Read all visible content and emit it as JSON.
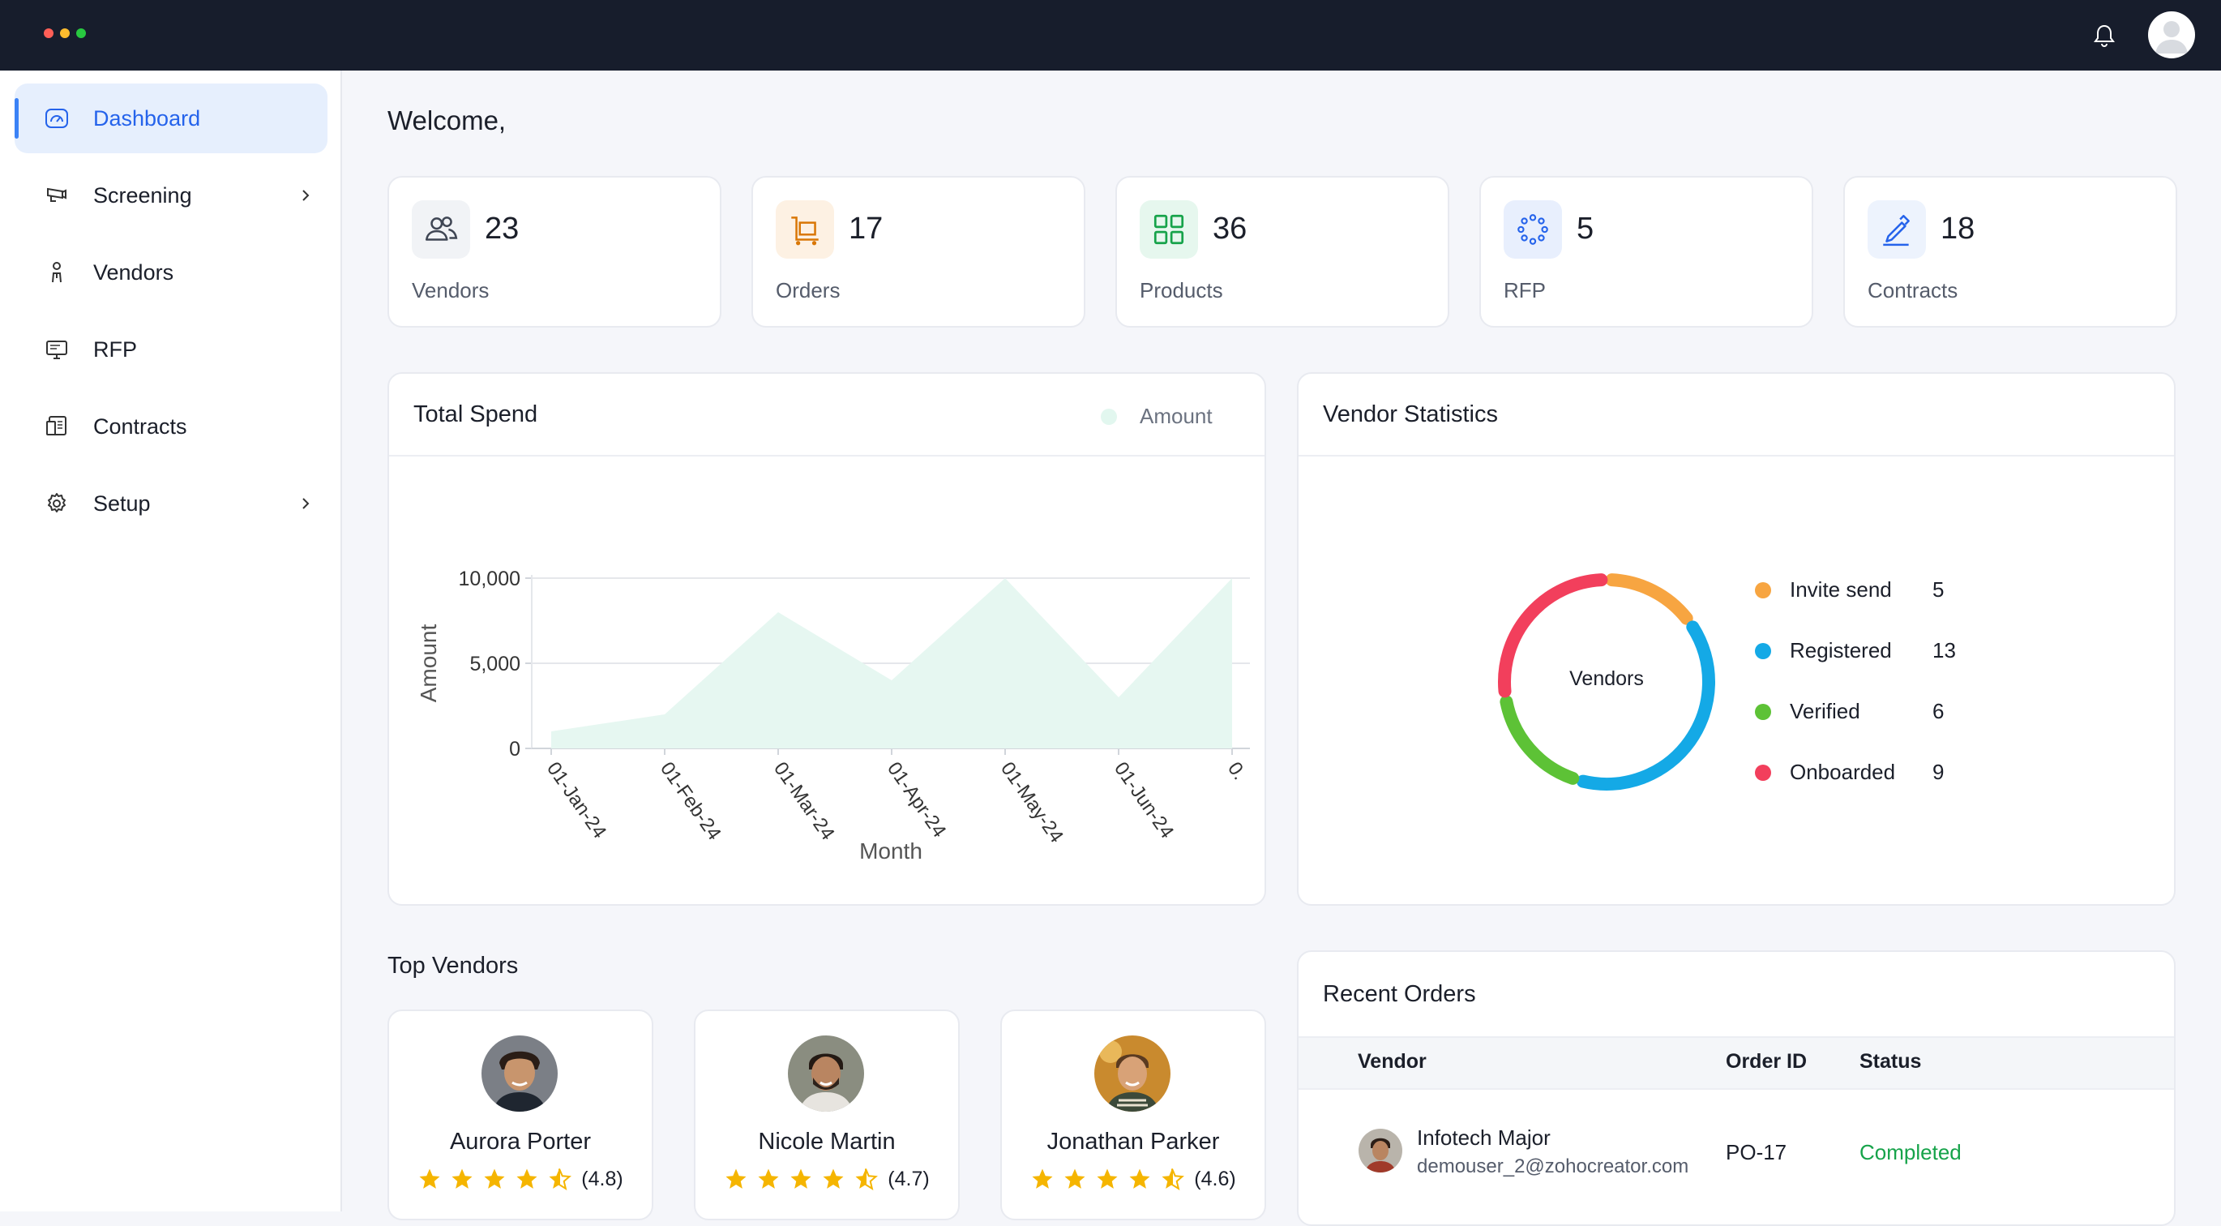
{
  "topbar": {
    "dot_colors": [
      "#ff5f57",
      "#febc2e",
      "#28c840"
    ],
    "bell_icon": "bell-icon",
    "avatar_icon": "user-avatar"
  },
  "sidebar": {
    "items": [
      {
        "label": "Dashboard",
        "icon": "gauge-icon",
        "active": true,
        "has_submenu": false
      },
      {
        "label": "Screening",
        "icon": "camera-icon",
        "active": false,
        "has_submenu": true
      },
      {
        "label": "Vendors",
        "icon": "person-icon",
        "active": false,
        "has_submenu": false
      },
      {
        "label": "RFP",
        "icon": "monitor-icon",
        "active": false,
        "has_submenu": false
      },
      {
        "label": "Contracts",
        "icon": "document-icon",
        "active": false,
        "has_submenu": false
      },
      {
        "label": "Setup",
        "icon": "gear-icon",
        "active": false,
        "has_submenu": true
      }
    ]
  },
  "main": {
    "welcome": "Welcome,",
    "stats": [
      {
        "value": "23",
        "label": "Vendors",
        "icon": "users-icon",
        "color": "#4b5563",
        "bg": "#f1f3f6"
      },
      {
        "value": "17",
        "label": "Orders",
        "icon": "cart-icon",
        "color": "#d97706",
        "bg": "#fdf1e3"
      },
      {
        "value": "36",
        "label": "Products",
        "icon": "grid-icon",
        "color": "#16a34a",
        "bg": "#e6f7ee"
      },
      {
        "value": "5",
        "label": "RFP",
        "icon": "dots-circle-icon",
        "color": "#2563eb",
        "bg": "#e8effd"
      },
      {
        "value": "18",
        "label": "Contracts",
        "icon": "pen-icon",
        "color": "#2563eb",
        "bg": "#edf3fd"
      }
    ],
    "total_spend": {
      "title": "Total Spend",
      "legend": "Amount",
      "chart_data": {
        "type": "area",
        "x": [
          "01-Jan-24",
          "01-Feb-24",
          "01-Mar-24",
          "01-Apr-24",
          "01-May-24",
          "01-Jun-24",
          "0."
        ],
        "values": [
          1000,
          2000,
          8000,
          4000,
          10000,
          3000,
          10000
        ],
        "series": [
          {
            "name": "Amount",
            "values": [
              1000,
              2000,
              8000,
              4000,
              10000,
              3000,
              10000
            ]
          }
        ],
        "xlabel": "Month",
        "ylabel": "Amount",
        "ylim": [
          0,
          10000
        ],
        "yticks": [
          "10,000",
          "5,000",
          "0"
        ],
        "fill_color": "#e6f7f1",
        "grid": true,
        "legend_placement": "top-right"
      }
    },
    "vendor_statistics": {
      "title": "Vendor Statistics",
      "center_label": "Vendors",
      "chart_data": {
        "type": "pie",
        "style": "donut",
        "categories": [
          "Invite send",
          "Registered",
          "Verified",
          "Onboarded"
        ],
        "values": [
          5,
          13,
          6,
          9
        ],
        "colors": [
          "#f7a541",
          "#14a9e6",
          "#5dc236",
          "#f23f5c"
        ],
        "legend_placement": "right"
      }
    },
    "top_vendors": {
      "title": "Top Vendors",
      "items": [
        {
          "name": "Aurora Porter",
          "rating": "(4.8)",
          "rating_value": 4.5
        },
        {
          "name": "Nicole Martin",
          "rating": "(4.7)",
          "rating_value": 4.5
        },
        {
          "name": "Jonathan Parker",
          "rating": "(4.6)",
          "rating_value": 4.5
        }
      ]
    },
    "recent_orders": {
      "title": "Recent Orders",
      "columns": [
        "Vendor",
        "Order ID",
        "Status"
      ],
      "rows": [
        {
          "vendor": "Infotech Major",
          "email": "demouser_2@zohocreator.com",
          "order_id": "PO-17",
          "status": "Completed",
          "status_color": "#16a34a"
        }
      ]
    }
  }
}
